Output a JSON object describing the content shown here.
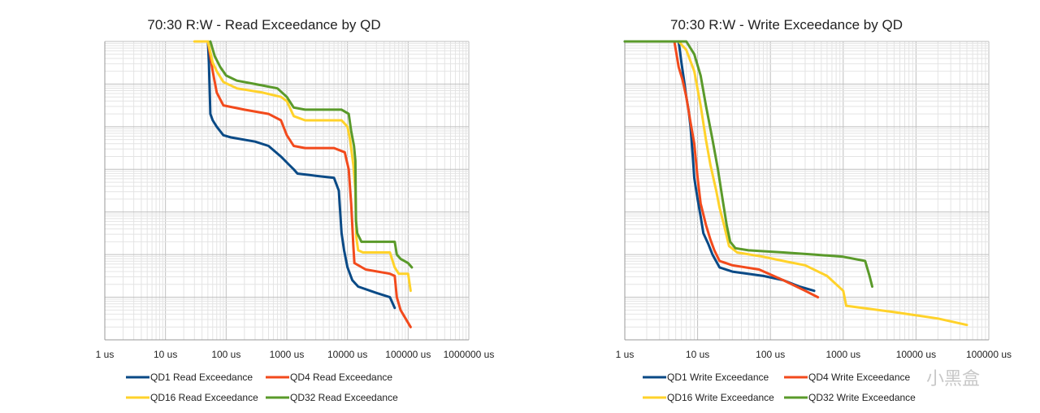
{
  "watermark": "小黑盒",
  "chart_data": [
    {
      "type": "line",
      "title": "70:30 R:W - Read Exceedance by QD",
      "x_scale": "log",
      "y_scale": "log",
      "xlim": [
        1,
        1000000
      ],
      "ylim_decades": [
        0,
        -7
      ],
      "y_tick_labels": "none",
      "grid": true,
      "legend": "bottom",
      "tick_labels": [
        "1 us",
        "10 us",
        "100 us",
        "1000 us",
        "10000 us",
        "100000 us",
        "1000000 us"
      ],
      "series": [
        {
          "name": "QD1 Read Exceedance",
          "color": "#0a4a86",
          "points": [
            [
              50,
              0
            ],
            [
              52,
              -0.5
            ],
            [
              55,
              -1.7
            ],
            [
              60,
              -1.85
            ],
            [
              70,
              -2.0
            ],
            [
              90,
              -2.2
            ],
            [
              120,
              -2.25
            ],
            [
              300,
              -2.35
            ],
            [
              500,
              -2.45
            ],
            [
              800,
              -2.7
            ],
            [
              1100,
              -2.9
            ],
            [
              1300,
              -3.0
            ],
            [
              1500,
              -3.1
            ],
            [
              3000,
              -3.15
            ],
            [
              6000,
              -3.2
            ],
            [
              7200,
              -3.5
            ],
            [
              8000,
              -4.5
            ],
            [
              8800,
              -4.9
            ],
            [
              10000,
              -5.3
            ],
            [
              12000,
              -5.6
            ],
            [
              15000,
              -5.75
            ],
            [
              30000,
              -5.9
            ],
            [
              50000,
              -6.0
            ],
            [
              60000,
              -6.25
            ]
          ]
        },
        {
          "name": "QD4 Read Exceedance",
          "color": "#f24a1c",
          "points": [
            [
              50,
              0
            ],
            [
              60,
              -0.7
            ],
            [
              70,
              -1.2
            ],
            [
              90,
              -1.5
            ],
            [
              200,
              -1.6
            ],
            [
              500,
              -1.7
            ],
            [
              800,
              -1.85
            ],
            [
              1000,
              -2.2
            ],
            [
              1300,
              -2.45
            ],
            [
              2000,
              -2.5
            ],
            [
              6000,
              -2.5
            ],
            [
              9000,
              -2.6
            ],
            [
              10500,
              -3.0
            ],
            [
              11500,
              -3.8
            ],
            [
              12500,
              -4.8
            ],
            [
              13000,
              -5.2
            ],
            [
              20000,
              -5.35
            ],
            [
              50000,
              -5.45
            ],
            [
              60000,
              -5.5
            ],
            [
              65000,
              -6.0
            ],
            [
              75000,
              -6.3
            ],
            [
              110000,
              -6.7
            ]
          ]
        },
        {
          "name": "QD16 Read Exceedance",
          "color": "#ffd22a",
          "points": [
            [
              30,
              0
            ],
            [
              50,
              0
            ],
            [
              60,
              -0.5
            ],
            [
              70,
              -0.7
            ],
            [
              90,
              -0.95
            ],
            [
              150,
              -1.1
            ],
            [
              400,
              -1.2
            ],
            [
              800,
              -1.3
            ],
            [
              1000,
              -1.4
            ],
            [
              1300,
              -1.75
            ],
            [
              2000,
              -1.85
            ],
            [
              8000,
              -1.85
            ],
            [
              10000,
              -2.0
            ],
            [
              11000,
              -2.3
            ],
            [
              12500,
              -2.9
            ],
            [
              13500,
              -3.5
            ],
            [
              14000,
              -4.6
            ],
            [
              15000,
              -4.9
            ],
            [
              18000,
              -4.95
            ],
            [
              50000,
              -4.95
            ],
            [
              60000,
              -5.3
            ],
            [
              70000,
              -5.45
            ],
            [
              100000,
              -5.45
            ],
            [
              110000,
              -5.85
            ]
          ]
        },
        {
          "name": "QD32 Read Exceedance",
          "color": "#5a9a2a",
          "points": [
            [
              55,
              0
            ],
            [
              65,
              -0.35
            ],
            [
              80,
              -0.6
            ],
            [
              100,
              -0.8
            ],
            [
              150,
              -0.92
            ],
            [
              300,
              -1.0
            ],
            [
              700,
              -1.1
            ],
            [
              1000,
              -1.3
            ],
            [
              1300,
              -1.55
            ],
            [
              2000,
              -1.6
            ],
            [
              8000,
              -1.6
            ],
            [
              10500,
              -1.7
            ],
            [
              11500,
              -2.1
            ],
            [
              12800,
              -2.45
            ],
            [
              13500,
              -2.8
            ],
            [
              13800,
              -4.2
            ],
            [
              14500,
              -4.5
            ],
            [
              17000,
              -4.7
            ],
            [
              60000,
              -4.7
            ],
            [
              65000,
              -5.0
            ],
            [
              75000,
              -5.1
            ],
            [
              100000,
              -5.2
            ],
            [
              115000,
              -5.3
            ]
          ]
        }
      ]
    },
    {
      "type": "line",
      "title": "70:30 R:W - Write Exceedance by QD",
      "x_scale": "log",
      "y_scale": "log",
      "xlim": [
        1,
        100000
      ],
      "ylim_decades": [
        0,
        -7
      ],
      "y_tick_labels": "none",
      "grid": true,
      "legend": "bottom",
      "tick_labels": [
        "1 us",
        "10 us",
        "100 us",
        "1000 us",
        "10000 us",
        "100000 us"
      ],
      "series": [
        {
          "name": "QD1 Write Exceedance",
          "color": "#0a4a86",
          "points": [
            [
              1,
              0
            ],
            [
              5.5,
              0
            ],
            [
              6,
              -0.5
            ],
            [
              6.5,
              -0.9
            ],
            [
              7,
              -1.3
            ],
            [
              7.5,
              -1.6
            ],
            [
              8,
              -2.0
            ],
            [
              8.5,
              -2.6
            ],
            [
              9,
              -3.2
            ],
            [
              10,
              -3.7
            ],
            [
              11,
              -4.1
            ],
            [
              12,
              -4.5
            ],
            [
              14,
              -4.75
            ],
            [
              16,
              -5.0
            ],
            [
              20,
              -5.3
            ],
            [
              30,
              -5.4
            ],
            [
              80,
              -5.5
            ],
            [
              150,
              -5.6
            ],
            [
              250,
              -5.75
            ],
            [
              400,
              -5.85
            ]
          ]
        },
        {
          "name": "QD4 Write Exceedance",
          "color": "#f24a1c",
          "points": [
            [
              4.8,
              0
            ],
            [
              5.5,
              -0.6
            ],
            [
              6.2,
              -0.9
            ],
            [
              7,
              -1.3
            ],
            [
              8,
              -1.9
            ],
            [
              9,
              -2.4
            ],
            [
              10,
              -3.2
            ],
            [
              11,
              -3.8
            ],
            [
              13,
              -4.3
            ],
            [
              15,
              -4.65
            ],
            [
              17,
              -4.9
            ],
            [
              20,
              -5.15
            ],
            [
              30,
              -5.25
            ],
            [
              70,
              -5.35
            ],
            [
              150,
              -5.6
            ],
            [
              300,
              -5.85
            ],
            [
              450,
              -6.0
            ]
          ]
        },
        {
          "name": "QD16 Write Exceedance",
          "color": "#ffd22a",
          "points": [
            [
              5.5,
              0
            ],
            [
              7,
              -0.2
            ],
            [
              9,
              -0.7
            ],
            [
              11,
              -1.5
            ],
            [
              13,
              -2.3
            ],
            [
              15,
              -2.9
            ],
            [
              18,
              -3.5
            ],
            [
              20,
              -3.9
            ],
            [
              23,
              -4.3
            ],
            [
              27,
              -4.8
            ],
            [
              35,
              -4.95
            ],
            [
              80,
              -5.05
            ],
            [
              150,
              -5.15
            ],
            [
              300,
              -5.25
            ],
            [
              600,
              -5.5
            ],
            [
              1000,
              -5.85
            ],
            [
              1100,
              -6.2
            ],
            [
              5000,
              -6.35
            ],
            [
              20000,
              -6.5
            ],
            [
              50000,
              -6.65
            ]
          ]
        },
        {
          "name": "QD32 Write Exceedance",
          "color": "#5a9a2a",
          "points": [
            [
              1,
              0
            ],
            [
              7,
              0
            ],
            [
              9,
              -0.3
            ],
            [
              11,
              -0.8
            ],
            [
              13,
              -1.5
            ],
            [
              16,
              -2.3
            ],
            [
              19,
              -3.0
            ],
            [
              22,
              -3.7
            ],
            [
              25,
              -4.3
            ],
            [
              28,
              -4.7
            ],
            [
              33,
              -4.85
            ],
            [
              50,
              -4.9
            ],
            [
              150,
              -4.95
            ],
            [
              400,
              -5.0
            ],
            [
              1000,
              -5.05
            ],
            [
              2000,
              -5.15
            ],
            [
              2300,
              -5.5
            ],
            [
              2500,
              -5.75
            ]
          ]
        }
      ]
    }
  ]
}
